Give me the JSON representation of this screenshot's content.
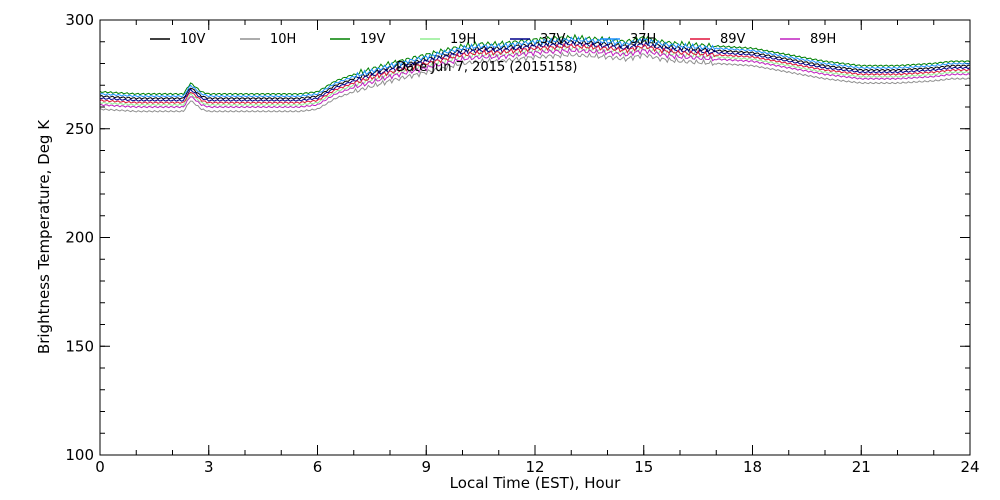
{
  "chart_data": {
    "type": "line",
    "title": "",
    "annotation": "Date Jun  7, 2015 (2015158)",
    "xlabel": "Local Time (EST), Hour",
    "ylabel": "Brightness Temperature, Deg K",
    "xlim": [
      0,
      24
    ],
    "ylim": [
      100,
      300
    ],
    "xticks": [
      0,
      3,
      6,
      9,
      12,
      15,
      18,
      21,
      24
    ],
    "yticks": [
      100,
      150,
      200,
      250,
      300
    ],
    "x_minor_step": 1,
    "y_minor_step": 10,
    "grid": false,
    "legend_position": "top",
    "x": [
      0,
      1,
      2,
      2.3,
      2.5,
      2.8,
      3,
      4,
      5,
      5.5,
      6,
      6.5,
      7,
      8,
      9,
      10,
      10.5,
      11,
      12,
      13,
      14,
      14.5,
      15,
      15.5,
      16,
      17,
      18,
      19,
      20,
      20.5,
      21,
      22,
      23,
      23.5,
      24
    ],
    "base": [
      262,
      261,
      261,
      261,
      266,
      262,
      261,
      261,
      261,
      261,
      262,
      267,
      270,
      275,
      279,
      283,
      284,
      284,
      286,
      287,
      286,
      285,
      287,
      285,
      284,
      283,
      282,
      279,
      276,
      275,
      274,
      274,
      275,
      276,
      276
    ],
    "series": [
      {
        "name": "10V",
        "color": "#000000",
        "offset": 3
      },
      {
        "name": "10H",
        "color": "#909090",
        "offset": -3
      },
      {
        "name": "19V",
        "color": "#008000",
        "offset": 5
      },
      {
        "name": "19H",
        "color": "#90ee90",
        "offset": 0
      },
      {
        "name": "37V",
        "color": "#00008b",
        "offset": 2
      },
      {
        "name": "37H",
        "color": "#1e90ff",
        "offset": 4
      },
      {
        "name": "89V",
        "color": "#e0143c",
        "offset": 1
      },
      {
        "name": "89H",
        "color": "#c020c0",
        "offset": -1
      }
    ]
  }
}
